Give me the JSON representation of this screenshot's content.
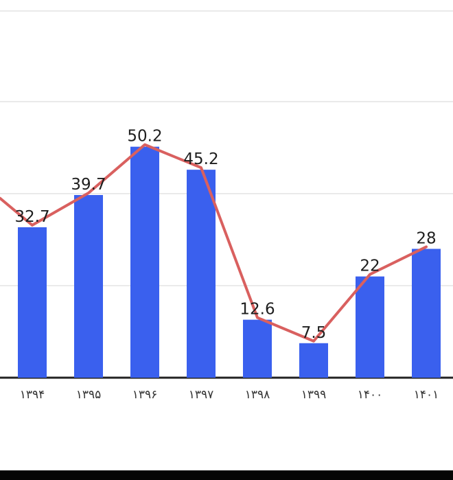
{
  "chart_data": {
    "type": "bar",
    "categories": [
      "۱۳۹۴",
      "۱۳۹۵",
      "۱۳۹۶",
      "۱۳۹۷",
      "۱۳۹۸",
      "۱۳۹۹",
      "۱۴۰۰",
      "۱۴۰۱"
    ],
    "series": [
      {
        "type": "bar",
        "values": [
          32.7,
          39.7,
          50.2,
          45.2,
          12.6,
          7.5,
          22,
          28
        ]
      },
      {
        "type": "line",
        "values": [
          32.7,
          39.7,
          50.2,
          45.2,
          12.6,
          7.5,
          22,
          28
        ]
      }
    ],
    "title": "",
    "xlabel": "",
    "ylabel": "",
    "ylim": [
      0,
      60
    ],
    "grid": true,
    "legend": "none",
    "colors": {
      "bar": "#3a60ee",
      "line": "#d9605f",
      "grid": "#e3e3e3",
      "axis": "#222222"
    }
  }
}
